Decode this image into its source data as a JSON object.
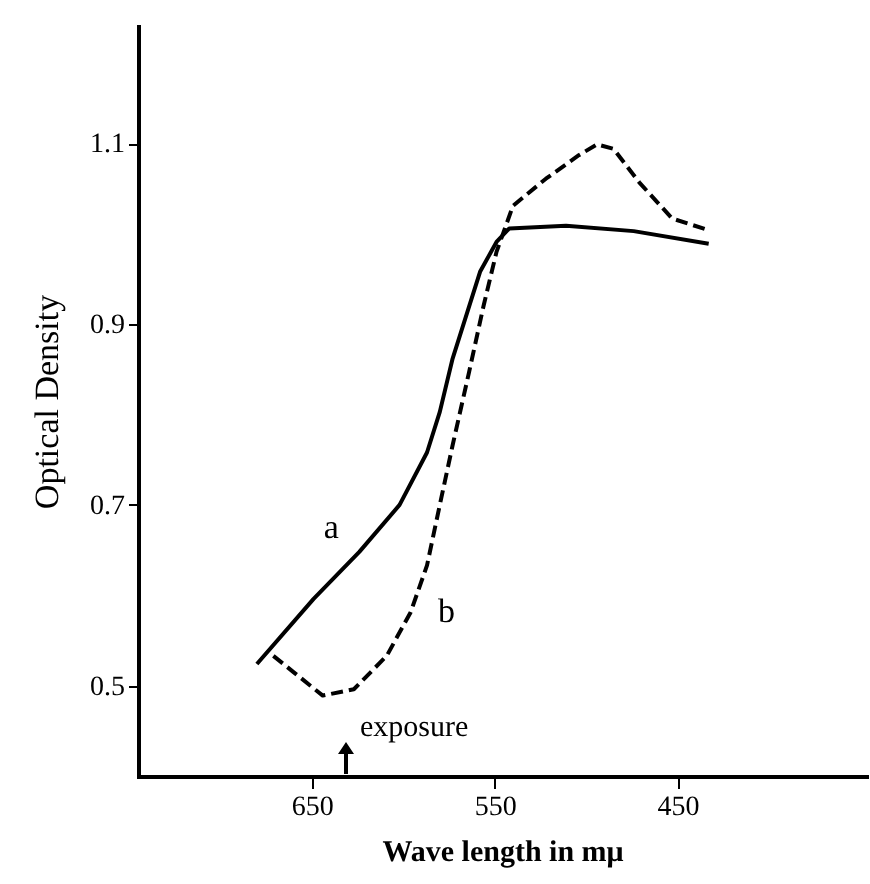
{
  "chart_data": {
    "type": "line",
    "xlabel": "Wave length in mμ",
    "ylabel": "Optical Density",
    "xlim": [
      745,
      347
    ],
    "xticks": [
      650,
      550,
      450
    ],
    "ylim": [
      0.4,
      1.23
    ],
    "yticks": [
      0.5,
      0.7,
      0.9,
      1.1
    ],
    "grid": false,
    "annotations": [
      "exposure"
    ],
    "series": [
      {
        "name": "a",
        "color": "#000000",
        "line_style": "solid",
        "x": [
          680,
          649,
          624,
          602,
          587,
          580,
          573,
          565,
          558,
          549,
          542,
          511,
          474,
          433
        ],
        "values": [
          0.524,
          0.596,
          0.648,
          0.7,
          0.758,
          0.803,
          0.862,
          0.913,
          0.958,
          0.991,
          1.006,
          1.009,
          1.003,
          0.989
        ]
      },
      {
        "name": "b",
        "color": "#000000",
        "line_style": "dashed",
        "x": [
          671,
          660,
          644,
          627,
          609,
          596,
          587,
          580,
          573,
          564,
          556,
          549,
          540,
          522,
          504,
          494,
          485,
          471,
          453,
          433
        ],
        "values": [
          0.533,
          0.515,
          0.489,
          0.496,
          0.533,
          0.581,
          0.633,
          0.7,
          0.766,
          0.847,
          0.921,
          0.98,
          1.031,
          1.061,
          1.087,
          1.099,
          1.094,
          1.057,
          1.017,
          1.004
        ]
      }
    ]
  }
}
